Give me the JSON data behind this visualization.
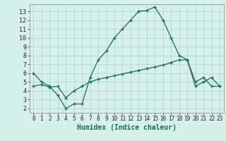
{
  "title": "",
  "xlabel": "Humidex (Indice chaleur)",
  "bg_color": "#d6f0ec",
  "grid_color": "#b0d8d4",
  "line_color": "#1a6b5a",
  "x_upper": [
    0,
    1,
    2,
    3,
    4,
    5,
    6,
    7,
    8,
    9,
    10,
    11,
    12,
    13,
    14,
    15,
    16,
    17,
    18,
    19,
    20,
    21,
    22,
    23
  ],
  "y_upper": [
    6,
    5,
    4.5,
    3.5,
    2.0,
    2.5,
    2.5,
    5.5,
    7.5,
    8.5,
    10.0,
    11.0,
    12.0,
    13.0,
    13.1,
    13.5,
    12.0,
    10.0,
    8.0,
    7.5,
    5.0,
    5.5,
    4.5,
    4.5
  ],
  "x_lower": [
    0,
    1,
    2,
    3,
    4,
    5,
    6,
    7,
    8,
    9,
    10,
    11,
    12,
    13,
    14,
    15,
    16,
    17,
    18,
    19,
    20,
    21,
    22,
    23
  ],
  "y_lower": [
    4.5,
    4.7,
    4.4,
    4.5,
    3.2,
    4.0,
    4.5,
    5.0,
    5.3,
    5.5,
    5.7,
    5.9,
    6.1,
    6.3,
    6.5,
    6.7,
    6.9,
    7.2,
    7.5,
    7.5,
    4.5,
    5.0,
    5.5,
    4.5
  ],
  "ylim": [
    1.5,
    13.8
  ],
  "xlim": [
    -0.5,
    23.5
  ],
  "yticks": [
    2,
    3,
    4,
    5,
    6,
    7,
    8,
    9,
    10,
    11,
    12,
    13
  ],
  "xticks": [
    0,
    1,
    2,
    3,
    4,
    5,
    6,
    7,
    8,
    9,
    10,
    11,
    12,
    13,
    14,
    15,
    16,
    17,
    18,
    19,
    20,
    21,
    22,
    23
  ],
  "xlabel_fontsize": 7,
  "tick_fontsize": 5.5,
  "linewidth": 0.9,
  "markersize": 3.5
}
